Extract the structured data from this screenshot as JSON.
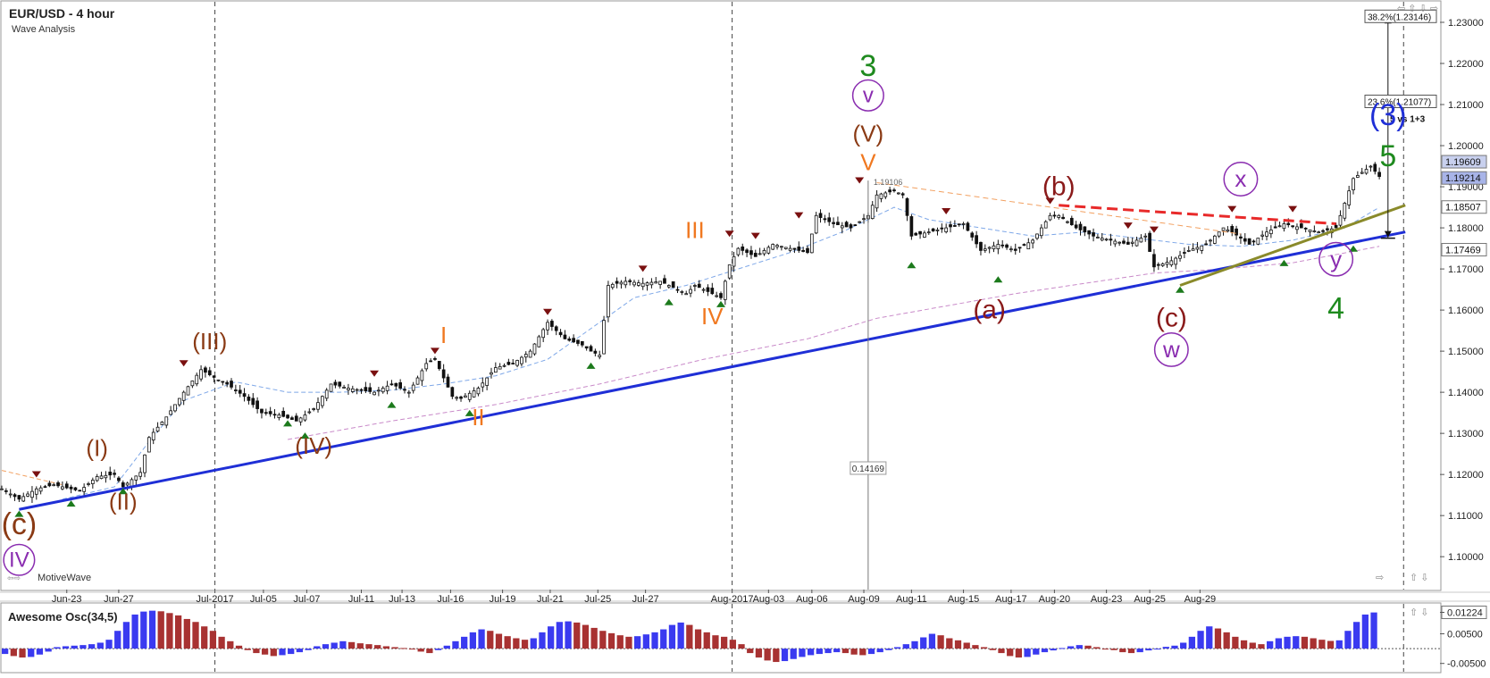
{
  "header": {
    "title": "EUR/USD - 4 hour",
    "subtitle": "Wave Analysis",
    "brand": "MotiveWave"
  },
  "chart_data": {
    "type": "candlestick",
    "symbol": "EUR/USD",
    "timeframe": "4 hour",
    "ylim": [
      1.092,
      1.235
    ],
    "y_ticks": [
      "1.23000",
      "1.22000",
      "1.21000",
      "1.20000",
      "1.19000",
      "1.18000",
      "1.17000",
      "1.16000",
      "1.15000",
      "1.14000",
      "1.13000",
      "1.12000",
      "1.11000",
      "1.10000"
    ],
    "x_ticks": [
      "Jun-23",
      "Jun-27",
      "Jul-2017",
      "Jul-05",
      "Jul-07",
      "Jul-11",
      "Jul-13",
      "Jul-16",
      "Jul-19",
      "Jul-21",
      "Jul-25",
      "Jul-27",
      "Aug-2017",
      "Aug-03",
      "Aug-06",
      "Aug-09",
      "Aug-11",
      "Aug-15",
      "Aug-17",
      "Aug-20",
      "Aug-23",
      "Aug-25",
      "Aug-29"
    ],
    "price_labels": {
      "last": "1.19609",
      "bid": "1.19214",
      "mid": "1.18507",
      "low": "1.17469"
    },
    "fib_labels": [
      {
        "text": "38.2%(1.23146)",
        "price": 1.23146
      },
      {
        "text": "23.6%(1.21077)",
        "price": 1.21077
      }
    ],
    "fib_note": "5 vs 1+3",
    "measure_label": "0.14169",
    "high_label": "1.19106",
    "path": [
      [
        0,
        1.1165
      ],
      [
        2,
        1.114
      ],
      [
        4,
        1.1165
      ],
      [
        6,
        1.1175
      ],
      [
        9,
        1.116
      ],
      [
        11,
        1.1195
      ],
      [
        13,
        1.12
      ],
      [
        14,
        1.117
      ],
      [
        16,
        1.1205
      ],
      [
        17,
        1.129
      ],
      [
        19,
        1.134
      ],
      [
        21,
        1.14
      ],
      [
        23,
        1.1455
      ],
      [
        25,
        1.143
      ],
      [
        26,
        1.142
      ],
      [
        28,
        1.139
      ],
      [
        30,
        1.135
      ],
      [
        32,
        1.1345
      ],
      [
        34,
        1.133
      ],
      [
        36,
        1.136
      ],
      [
        38,
        1.142
      ],
      [
        40,
        1.141
      ],
      [
        43,
        1.14
      ],
      [
        45,
        1.142
      ],
      [
        47,
        1.14
      ],
      [
        49,
        1.147
      ],
      [
        50,
        1.148
      ],
      [
        52,
        1.139
      ],
      [
        53,
        1.1385
      ],
      [
        55,
        1.141
      ],
      [
        57,
        1.146
      ],
      [
        59,
        1.147
      ],
      [
        61,
        1.15
      ],
      [
        63,
        1.157
      ],
      [
        65,
        1.153
      ],
      [
        67,
        1.1515
      ],
      [
        68,
        1.15
      ],
      [
        69,
        1.149
      ],
      [
        70,
        1.166
      ],
      [
        72,
        1.167
      ],
      [
        74,
        1.1665
      ],
      [
        76,
        1.167
      ],
      [
        78,
        1.165
      ],
      [
        79,
        1.164
      ],
      [
        80,
        1.166
      ],
      [
        82,
        1.164
      ],
      [
        83,
        1.163
      ],
      [
        84,
        1.171
      ],
      [
        85,
        1.175
      ],
      [
        87,
        1.173
      ],
      [
        89,
        1.176
      ],
      [
        91,
        1.175
      ],
      [
        93,
        1.174
      ],
      [
        94,
        1.183
      ],
      [
        96,
        1.181
      ],
      [
        98,
        1.18
      ],
      [
        100,
        1.183
      ],
      [
        101,
        1.188
      ],
      [
        103,
        1.189
      ],
      [
        104,
        1.188
      ],
      [
        105,
        1.178
      ],
      [
        107,
        1.179
      ],
      [
        109,
        1.18
      ],
      [
        111,
        1.181
      ],
      [
        113,
        1.1745
      ],
      [
        115,
        1.176
      ],
      [
        117,
        1.1745
      ],
      [
        119,
        1.177
      ],
      [
        121,
        1.183
      ],
      [
        122,
        1.183
      ],
      [
        124,
        1.18
      ],
      [
        126,
        1.178
      ],
      [
        128,
        1.177
      ],
      [
        130,
        1.176
      ],
      [
        132,
        1.178
      ],
      [
        133,
        1.1705
      ],
      [
        135,
        1.172
      ],
      [
        137,
        1.1745
      ],
      [
        139,
        1.176
      ],
      [
        141,
        1.18
      ],
      [
        142,
        1.179
      ],
      [
        144,
        1.176
      ],
      [
        146,
        1.179
      ],
      [
        148,
        1.181
      ],
      [
        150,
        1.18
      ],
      [
        152,
        1.179
      ],
      [
        154,
        1.18
      ],
      [
        155,
        1.186
      ],
      [
        156,
        1.192
      ],
      [
        158,
        1.195
      ],
      [
        159,
        1.1925
      ]
    ],
    "swing_highs": [
      [
        4,
        1.1195
      ],
      [
        21,
        1.1465
      ],
      [
        43,
        1.144
      ],
      [
        50,
        1.1495
      ],
      [
        63,
        1.159
      ],
      [
        74,
        1.1695
      ],
      [
        84,
        1.178
      ],
      [
        87,
        1.1775
      ],
      [
        92,
        1.1825
      ],
      [
        99,
        1.191
      ],
      [
        109,
        1.1835
      ],
      [
        121,
        1.186
      ],
      [
        130,
        1.18
      ],
      [
        133,
        1.179
      ],
      [
        142,
        1.184
      ],
      [
        149,
        1.184
      ]
    ],
    "swing_lows": [
      [
        2,
        1.111
      ],
      [
        8,
        1.1135
      ],
      [
        14,
        1.1165
      ],
      [
        33,
        1.133
      ],
      [
        35,
        1.13
      ],
      [
        45,
        1.1375
      ],
      [
        54,
        1.1355
      ],
      [
        68,
        1.147
      ],
      [
        77,
        1.1625
      ],
      [
        83,
        1.162
      ],
      [
        105,
        1.1715
      ],
      [
        115,
        1.168
      ],
      [
        136,
        1.1655
      ],
      [
        148,
        1.172
      ],
      [
        156,
        1.1755
      ]
    ],
    "averages": {
      "fast": [
        [
          7,
          1.114
        ],
        [
          13,
          1.117
        ],
        [
          17,
          1.128
        ],
        [
          21,
          1.138
        ],
        [
          27,
          1.1425
        ],
        [
          33,
          1.14
        ],
        [
          39,
          1.14
        ],
        [
          45,
          1.1405
        ],
        [
          51,
          1.142
        ],
        [
          57,
          1.144
        ],
        [
          63,
          1.148
        ],
        [
          69,
          1.157
        ],
        [
          73,
          1.163
        ],
        [
          79,
          1.166
        ],
        [
          85,
          1.17
        ],
        [
          91,
          1.174
        ],
        [
          97,
          1.179
        ],
        [
          103,
          1.185
        ],
        [
          107,
          1.182
        ],
        [
          113,
          1.18
        ],
        [
          119,
          1.178
        ],
        [
          125,
          1.179
        ],
        [
          131,
          1.1775
        ],
        [
          137,
          1.176
        ],
        [
          143,
          1.1755
        ],
        [
          149,
          1.177
        ],
        [
          155,
          1.18
        ],
        [
          159,
          1.185
        ]
      ],
      "slow": [
        [
          33,
          1.1285
        ],
        [
          45,
          1.133
        ],
        [
          57,
          1.137
        ],
        [
          69,
          1.142
        ],
        [
          81,
          1.148
        ],
        [
          93,
          1.153
        ],
        [
          101,
          1.158
        ],
        [
          109,
          1.161
        ],
        [
          117,
          1.164
        ],
        [
          125,
          1.1665
        ],
        [
          133,
          1.169
        ],
        [
          141,
          1.17
        ],
        [
          149,
          1.1715
        ],
        [
          159,
          1.1755
        ]
      ],
      "tan": [
        [
          0,
          1.121
        ],
        [
          7,
          1.1175
        ]
      ]
    },
    "trendlines": [
      {
        "name": "main-support",
        "color": "#1f2fd6",
        "from": [
          2,
          1.1115
        ],
        "to": [
          162,
          1.179
        ],
        "width": 3
      },
      {
        "name": "olive-support",
        "color": "#8a8a2a",
        "from": [
          136,
          1.166
        ],
        "to": [
          162,
          1.1855
        ],
        "width": 3
      },
      {
        "name": "red-resistance",
        "color": "#e82a2a",
        "from": [
          122,
          1.1855
        ],
        "to": [
          154,
          1.181
        ],
        "width": 3,
        "dash": true
      },
      {
        "name": "orange-resistance",
        "color": "#f2a060",
        "from": [
          101,
          1.191
        ],
        "to": [
          143,
          1.1785
        ],
        "width": 1,
        "dash": true
      }
    ],
    "wave_labels": [
      {
        "text": "(c)",
        "x": 2,
        "y": 1.1055,
        "color": "#8a3a14",
        "size": 34
      },
      {
        "text": "IV",
        "x": 2,
        "y": 1.0975,
        "color": "#8a2db0",
        "size": 24,
        "circle": true
      },
      {
        "text": "(I)",
        "x": 11,
        "y": 1.1245,
        "color": "#8a3a14",
        "size": 26
      },
      {
        "text": "(II)",
        "x": 14,
        "y": 1.1115,
        "color": "#8a3a14",
        "size": 26
      },
      {
        "text": "(III)",
        "x": 24,
        "y": 1.1505,
        "color": "#8a3a14",
        "size": 26
      },
      {
        "text": "(IV)",
        "x": 36,
        "y": 1.125,
        "color": "#8a3a14",
        "size": 26
      },
      {
        "text": "I",
        "x": 51,
        "y": 1.152,
        "color": "#f07820",
        "size": 26
      },
      {
        "text": "II",
        "x": 55,
        "y": 1.132,
        "color": "#f07820",
        "size": 26
      },
      {
        "text": "III",
        "x": 80,
        "y": 1.1775,
        "color": "#f07820",
        "size": 26
      },
      {
        "text": "IV",
        "x": 82,
        "y": 1.1565,
        "color": "#f07820",
        "size": 26
      },
      {
        "text": "3",
        "x": 100,
        "y": 1.217,
        "color": "#1e8a1e",
        "size": 34
      },
      {
        "text": "v",
        "x": 100,
        "y": 1.2105,
        "color": "#8a2db0",
        "size": 24,
        "circle": true
      },
      {
        "text": "(V)",
        "x": 100,
        "y": 1.201,
        "color": "#8a3a14",
        "size": 26
      },
      {
        "text": "V",
        "x": 100,
        "y": 1.194,
        "color": "#f07820",
        "size": 26
      },
      {
        "text": "(a)",
        "x": 114,
        "y": 1.158,
        "color": "#8a1a1a",
        "size": 30
      },
      {
        "text": "(b)",
        "x": 122,
        "y": 1.188,
        "color": "#8a1a1a",
        "size": 30
      },
      {
        "text": "(c)",
        "x": 135,
        "y": 1.156,
        "color": "#8a1a1a",
        "size": 30
      },
      {
        "text": "w",
        "x": 135,
        "y": 1.1485,
        "color": "#8a2db0",
        "size": 26,
        "circle": true
      },
      {
        "text": "x",
        "x": 143,
        "y": 1.19,
        "color": "#8a2db0",
        "size": 26,
        "circle": true
      },
      {
        "text": "y",
        "x": 154,
        "y": 1.1705,
        "color": "#8a2db0",
        "size": 26,
        "circle": true
      },
      {
        "text": "4",
        "x": 154,
        "y": 1.158,
        "color": "#1e8a1e",
        "size": 34
      },
      {
        "text": "(3)",
        "x": 160,
        "y": 1.205,
        "color": "#1f2fd6",
        "size": 34
      },
      {
        "text": "5",
        "x": 160,
        "y": 1.195,
        "color": "#1e8a1e",
        "size": 34
      }
    ],
    "oscillator": {
      "label": "Awesome Osc(34,5)",
      "y_ticks": [
        "0.01224",
        "0.00500",
        "-0.00500"
      ],
      "ylim": [
        -0.0078,
        0.0145
      ],
      "values": [
        -0.0018,
        -0.0025,
        -0.003,
        -0.0028,
        -0.002,
        -0.001,
        0.0005,
        0.0008,
        0.001,
        0.0012,
        0.0015,
        0.002,
        0.003,
        0.006,
        0.009,
        0.0115,
        0.0125,
        0.0128,
        0.0126,
        0.012,
        0.0112,
        0.01,
        0.009,
        0.0075,
        0.006,
        0.004,
        0.0025,
        0.001,
        -0.0005,
        -0.0015,
        -0.002,
        -0.0025,
        -0.0022,
        -0.0018,
        -0.0012,
        -0.0005,
        0.0008,
        0.0015,
        0.002,
        0.0025,
        0.0022,
        0.0018,
        0.0015,
        0.0012,
        0.0008,
        0.0005,
        0.0002,
        -0.0002,
        -0.001,
        -0.0015,
        -0.0005,
        0.001,
        0.0025,
        0.004,
        0.0055,
        0.0065,
        0.006,
        0.005,
        0.0042,
        0.0035,
        0.003,
        0.0035,
        0.0055,
        0.0075,
        0.009,
        0.0092,
        0.0088,
        0.008,
        0.007,
        0.006,
        0.0052,
        0.0045,
        0.004,
        0.0042,
        0.0048,
        0.0055,
        0.0065,
        0.008,
        0.0088,
        0.008,
        0.0065,
        0.0055,
        0.0045,
        0.004,
        0.003,
        0.0015,
        -0.0015,
        -0.003,
        -0.004,
        -0.0045,
        -0.0042,
        -0.0035,
        -0.0028,
        -0.0022,
        -0.0018,
        -0.0015,
        -0.0012,
        -0.0015,
        -0.002,
        -0.0022,
        -0.0018,
        -0.0012,
        -0.0005,
        0.0005,
        0.0015,
        0.0025,
        0.0038,
        0.005,
        0.0045,
        0.0035,
        0.0028,
        0.002,
        0.0012,
        0.0005,
        -0.0005,
        -0.0015,
        -0.0025,
        -0.003,
        -0.0028,
        -0.002,
        -0.0012,
        -0.0006,
        0.0002,
        0.0008,
        0.0012,
        0.001,
        0.0005,
        0.0,
        -0.0005,
        -0.0012,
        -0.0015,
        -0.0012,
        -0.0006,
        0.0,
        0.0006,
        0.001,
        0.002,
        0.004,
        0.006,
        0.0075,
        0.0068,
        0.0055,
        0.004,
        0.0028,
        0.002,
        0.0015,
        0.0025,
        0.0035,
        0.004,
        0.0042,
        0.004,
        0.0035,
        0.003,
        0.0026,
        0.0028,
        0.006,
        0.009,
        0.0115,
        0.0122
      ]
    }
  },
  "colors": {
    "up": "#3a3af0",
    "down": "#a83232",
    "grid": "#555555",
    "bg": "#ffffff",
    "label_bg_price": "#c8d0ee",
    "label_bg_bid": "#c8d0ee"
  }
}
